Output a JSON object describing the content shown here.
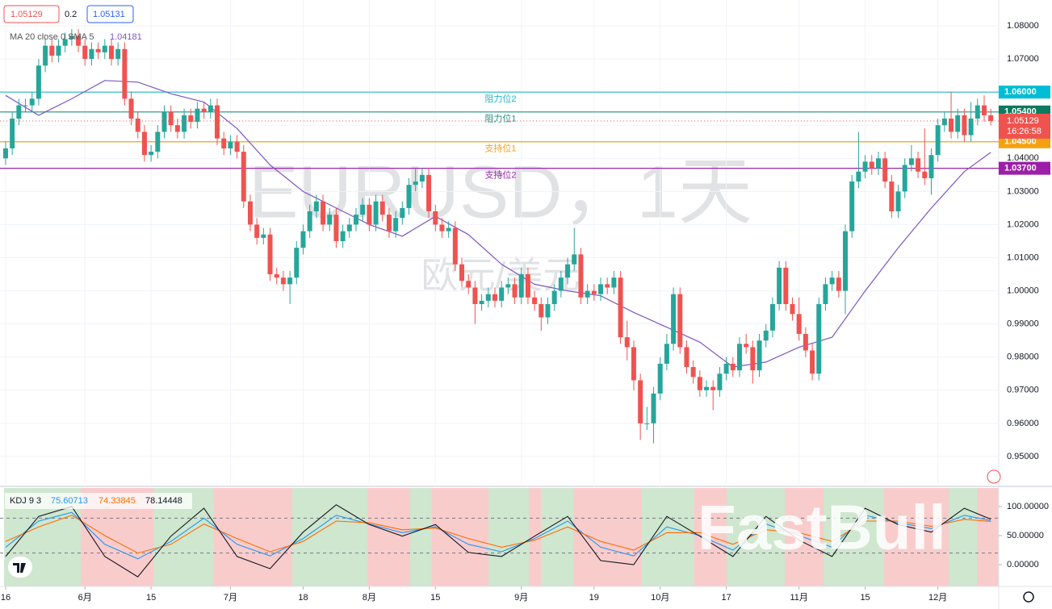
{
  "chart_data": [
    {
      "type": "candlestick",
      "title": "EURUSD，1天",
      "subtitle": "欧元/美元",
      "bid": 1.05129,
      "spread": 0.2,
      "ask": 1.05131,
      "countdown": "16:26:58",
      "up_color": "#26a69a",
      "down_color": "#ef5350",
      "xlim": [
        -0.85,
        150.2
      ],
      "ylim": [
        0.9417,
        1.0878
      ],
      "grid": true,
      "xticks": [
        {
          "value": 0,
          "label": "16"
        },
        {
          "value": 12,
          "label": "6月"
        },
        {
          "value": 22,
          "label": "15"
        },
        {
          "value": 34,
          "label": "7月"
        },
        {
          "value": 45,
          "label": "18"
        },
        {
          "value": 55,
          "label": "8月"
        },
        {
          "value": 65,
          "label": "15"
        },
        {
          "value": 78,
          "label": "9月"
        },
        {
          "value": 89,
          "label": "19"
        },
        {
          "value": 99,
          "label": "10月"
        },
        {
          "value": 109,
          "label": "17"
        },
        {
          "value": 120,
          "label": "11月"
        },
        {
          "value": 130,
          "label": "15"
        },
        {
          "value": 141,
          "label": "12月"
        }
      ],
      "yticks": [
        {
          "value": 0.95,
          "label": "0.95000"
        },
        {
          "value": 0.96,
          "label": "0.96000"
        },
        {
          "value": 0.97,
          "label": "0.97000"
        },
        {
          "value": 0.98,
          "label": "0.98000"
        },
        {
          "value": 0.99,
          "label": "0.99000"
        },
        {
          "value": 1.0,
          "label": "1.00000"
        },
        {
          "value": 1.01,
          "label": "1.01000"
        },
        {
          "value": 1.02,
          "label": "1.02000"
        },
        {
          "value": 1.03,
          "label": "1.03000"
        },
        {
          "value": 1.04,
          "label": "1.04000"
        },
        {
          "value": 1.05,
          "label": "1.05000"
        },
        {
          "value": 1.06,
          "label": "1.06000"
        },
        {
          "value": 1.07,
          "label": "1.07000"
        },
        {
          "value": 1.08,
          "label": "1.08000"
        }
      ],
      "levels": [
        {
          "name": "阻力位2",
          "price": {
            "value": 1.06,
            "label": "1.06000"
          },
          "color": "#22b5c8",
          "tag_color": "#00bcd4"
        },
        {
          "name": "阻力位1",
          "price": {
            "value": 1.054,
            "label": "1.05400"
          },
          "color": "#1f8f80",
          "tag_color": "#0c7a5e"
        },
        {
          "name": "支持位1",
          "price": {
            "value": 1.045,
            "label": "1.04500"
          },
          "color": "#f0a020",
          "tag_color": "#f5a10f"
        },
        {
          "name": "支持位2",
          "price": {
            "value": 1.037,
            "label": "1.03700"
          },
          "color": "#9c27b0",
          "tag_color": "#9c1fa8"
        }
      ],
      "open": [
        1.04,
        1.043,
        1.052,
        1.056,
        1.056,
        1.058,
        1.068,
        1.074,
        1.071,
        1.074,
        1.076,
        1.077,
        1.074,
        1.07,
        1.073,
        1.072,
        1.074,
        1.07,
        1.073,
        1.058,
        1.052,
        1.048,
        1.041,
        1.042,
        1.048,
        1.054,
        1.05,
        1.048,
        1.053,
        1.051,
        1.055,
        1.054,
        1.056,
        1.046,
        1.043,
        1.045,
        1.042,
        1.027,
        1.02,
        1.016,
        1.017,
        1.005,
        1.004,
        1.002,
        1.004,
        1.013,
        1.018,
        1.024,
        1.027,
        1.02,
        1.023,
        1.015,
        1.018,
        1.02,
        1.023,
        1.026,
        1.02,
        1.027,
        1.023,
        1.018,
        1.022,
        1.025,
        1.032,
        1.033,
        1.035,
        1.024,
        1.02,
        1.018,
        1.019,
        1.008,
        1.003,
        1.001,
        0.996,
        0.997,
        0.999,
        0.997,
        1.001,
        1.002,
        0.998,
        1.005,
        0.998,
        0.996,
        0.992,
        0.996,
        1.0,
        1.004,
        1.008,
        1.011,
        0.998,
        1.0,
        0.999,
        1.002,
        1.001,
        1.004,
        0.986,
        0.983,
        0.973,
        0.96,
        0.96,
        0.969,
        0.978,
        0.984,
        0.999,
        0.983,
        0.977,
        0.974,
        0.97,
        0.971,
        0.97,
        0.975,
        0.978,
        0.976,
        0.984,
        0.983,
        0.976,
        0.985,
        0.988,
        0.996,
        1.007,
        0.996,
        0.993,
        0.987,
        0.982,
        0.975,
        0.996,
        1.002,
        1.004,
        1.0,
        1.018,
        1.033,
        1.036,
        1.039,
        1.037,
        1.04,
        1.033,
        1.024,
        1.03,
        1.038,
        1.04,
        1.036,
        1.034,
        1.041,
        1.05,
        1.052,
        1.048,
        1.053,
        1.047,
        1.052,
        1.056,
        1.053
      ],
      "high": [
        1.045,
        1.054,
        1.058,
        1.058,
        1.06,
        1.07,
        1.076,
        1.076,
        1.076,
        1.078,
        1.079,
        1.079,
        1.076,
        1.075,
        1.075,
        1.076,
        1.076,
        1.075,
        1.075,
        1.06,
        1.054,
        1.05,
        1.044,
        1.05,
        1.056,
        1.056,
        1.052,
        1.055,
        1.055,
        1.057,
        1.057,
        1.058,
        1.058,
        1.048,
        1.047,
        1.047,
        1.044,
        1.029,
        1.022,
        1.019,
        1.019,
        1.007,
        1.006,
        1.006,
        1.015,
        1.02,
        1.026,
        1.029,
        1.029,
        1.025,
        1.025,
        1.02,
        1.022,
        1.025,
        1.028,
        1.028,
        1.029,
        1.029,
        1.025,
        1.024,
        1.027,
        1.034,
        1.037,
        1.037,
        1.037,
        1.026,
        1.022,
        1.021,
        1.021,
        1.01,
        1.005,
        1.003,
        0.999,
        1.001,
        1.001,
        1.003,
        1.004,
        1.004,
        1.007,
        1.007,
        1.0,
        0.998,
        0.998,
        1.002,
        1.006,
        1.01,
        1.019,
        1.013,
        1.002,
        1.002,
        1.004,
        1.004,
        1.006,
        1.006,
        0.991,
        0.985,
        0.975,
        0.965,
        0.971,
        0.98,
        0.987,
        1.001,
        1.001,
        0.985,
        0.979,
        0.976,
        0.973,
        0.973,
        0.977,
        0.98,
        0.98,
        0.986,
        0.987,
        0.985,
        0.987,
        0.99,
        0.998,
        1.009,
        1.009,
        0.998,
        0.998,
        0.989,
        0.984,
        0.998,
        1.004,
        1.006,
        1.006,
        1.02,
        1.035,
        1.048,
        1.041,
        1.041,
        1.042,
        1.042,
        1.035,
        1.032,
        1.04,
        1.044,
        1.042,
        1.049,
        1.043,
        1.052,
        1.054,
        1.06,
        1.055,
        1.055,
        1.057,
        1.058,
        1.059,
        1.055
      ],
      "low": [
        1.038,
        1.041,
        1.05,
        1.054,
        1.054,
        1.056,
        1.066,
        1.069,
        1.069,
        1.072,
        1.074,
        1.072,
        1.068,
        1.068,
        1.07,
        1.07,
        1.068,
        1.068,
        1.056,
        1.05,
        1.046,
        1.039,
        1.039,
        1.04,
        1.046,
        1.048,
        1.046,
        1.046,
        1.049,
        1.049,
        1.052,
        1.052,
        1.044,
        1.041,
        1.041,
        1.04,
        1.025,
        1.018,
        1.014,
        1.014,
        1.003,
        1.002,
        1.0,
        0.996,
        1.002,
        1.011,
        1.016,
        1.022,
        1.018,
        1.018,
        1.013,
        1.013,
        1.016,
        1.018,
        1.021,
        1.018,
        1.018,
        1.021,
        1.016,
        1.016,
        1.02,
        1.023,
        1.03,
        1.031,
        1.022,
        1.018,
        1.016,
        1.016,
        1.006,
        1.001,
        0.999,
        0.99,
        0.994,
        0.995,
        0.995,
        0.995,
        0.999,
        0.996,
        0.996,
        0.996,
        0.994,
        0.988,
        0.99,
        0.994,
        0.998,
        1.002,
        1.006,
        0.996,
        0.996,
        0.997,
        0.997,
        0.999,
        0.999,
        0.984,
        0.979,
        0.97,
        0.955,
        0.958,
        0.954,
        0.967,
        0.976,
        0.982,
        0.981,
        0.975,
        0.972,
        0.968,
        0.968,
        0.964,
        0.968,
        0.973,
        0.974,
        0.974,
        0.981,
        0.972,
        0.974,
        0.983,
        0.986,
        0.994,
        0.994,
        0.991,
        0.985,
        0.98,
        0.973,
        0.973,
        0.994,
        1.0,
        0.998,
        0.993,
        1.016,
        1.031,
        1.034,
        1.035,
        1.035,
        1.031,
        1.022,
        1.022,
        1.028,
        1.036,
        1.034,
        1.032,
        1.029,
        1.039,
        1.048,
        1.046,
        1.046,
        1.045,
        1.045,
        1.05,
        1.051,
        1.05
      ],
      "close": [
        1.043,
        1.052,
        1.056,
        1.056,
        1.058,
        1.068,
        1.074,
        1.071,
        1.074,
        1.076,
        1.077,
        1.074,
        1.07,
        1.073,
        1.072,
        1.074,
        1.07,
        1.073,
        1.058,
        1.052,
        1.048,
        1.041,
        1.042,
        1.048,
        1.054,
        1.05,
        1.048,
        1.053,
        1.051,
        1.055,
        1.054,
        1.056,
        1.046,
        1.043,
        1.045,
        1.042,
        1.027,
        1.02,
        1.016,
        1.017,
        1.005,
        1.004,
        1.002,
        1.004,
        1.013,
        1.018,
        1.024,
        1.027,
        1.02,
        1.023,
        1.015,
        1.018,
        1.02,
        1.023,
        1.026,
        1.02,
        1.027,
        1.023,
        1.018,
        1.022,
        1.025,
        1.032,
        1.033,
        1.035,
        1.024,
        1.02,
        1.018,
        1.019,
        1.008,
        1.003,
        1.001,
        0.996,
        0.997,
        0.999,
        0.997,
        1.001,
        1.002,
        0.998,
        1.005,
        0.998,
        0.996,
        0.992,
        0.996,
        1.0,
        1.004,
        1.008,
        1.011,
        0.998,
        1.0,
        0.999,
        1.002,
        1.001,
        1.004,
        0.986,
        0.983,
        0.973,
        0.96,
        0.96,
        0.969,
        0.978,
        0.984,
        0.999,
        0.983,
        0.977,
        0.974,
        0.97,
        0.971,
        0.97,
        0.975,
        0.978,
        0.976,
        0.984,
        0.983,
        0.976,
        0.985,
        0.988,
        0.996,
        1.007,
        0.996,
        0.993,
        0.987,
        0.982,
        0.975,
        0.996,
        1.002,
        1.004,
        1.0,
        1.018,
        1.033,
        1.036,
        1.039,
        1.037,
        1.04,
        1.033,
        1.024,
        1.03,
        1.038,
        1.04,
        1.036,
        1.034,
        1.041,
        1.05,
        1.052,
        1.048,
        1.053,
        1.047,
        1.052,
        1.056,
        1.053,
        1.05129
      ],
      "ma": {
        "name": "MA 20 close 0 SMA 5",
        "color": "#7e57c2",
        "x": [
          0,
          5,
          10,
          15,
          20,
          25,
          30,
          35,
          40,
          45,
          50,
          55,
          60,
          65,
          70,
          75,
          80,
          85,
          90,
          95,
          100,
          105,
          110,
          115,
          120,
          125,
          130,
          135,
          140,
          145,
          149
        ],
        "values": [
          1.059,
          1.053,
          1.058,
          1.0635,
          1.063,
          1.0595,
          1.057,
          1.049,
          1.038,
          1.03,
          1.025,
          1.02,
          1.0165,
          1.0225,
          1.017,
          1.008,
          1.002,
          1.0,
          0.9985,
          0.9935,
          0.989,
          0.9845,
          0.977,
          0.9785,
          0.983,
          0.986,
          1.0,
          1.013,
          1.025,
          1.036,
          1.04181
        ]
      }
    },
    {
      "type": "line",
      "title": "KDJ 9 3",
      "ylim": [
        -37.5,
        131.9
      ],
      "hlines": [
        80,
        20
      ],
      "yticks": [
        {
          "value": 0,
          "label": "0.00000"
        },
        {
          "value": 50,
          "label": "50.00000"
        },
        {
          "value": 100,
          "label": "100.00000"
        }
      ],
      "x": [
        0,
        5,
        10,
        15,
        20,
        25,
        30,
        35,
        40,
        45,
        50,
        55,
        60,
        65,
        70,
        75,
        80,
        85,
        90,
        95,
        100,
        105,
        110,
        115,
        120,
        125,
        130,
        135,
        140,
        145,
        149
      ],
      "series": [
        {
          "color": "#2196f3",
          "values": [
            30,
            75,
            90,
            35,
            10,
            40,
            80,
            35,
            15,
            45,
            85,
            70,
            55,
            65,
            35,
            22,
            45,
            75,
            30,
            15,
            65,
            50,
            25,
            70,
            50,
            30,
            85,
            72,
            62,
            85,
            75.60713
          ]
        },
        {
          "color": "#ff6d00",
          "values": [
            40,
            65,
            85,
            50,
            20,
            35,
            70,
            45,
            22,
            40,
            75,
            72,
            60,
            63,
            45,
            30,
            42,
            65,
            40,
            25,
            55,
            55,
            35,
            60,
            55,
            40,
            75,
            75,
            66,
            78,
            74.33845
          ]
        },
        {
          "color": "#131722",
          "values": [
            14,
            83,
            100,
            14,
            -21,
            49,
            97,
            14,
            -7,
            56,
            103,
            69,
            49,
            69,
            21,
            14,
            49,
            83,
            7,
            0,
            83,
            49,
            14,
            83,
            42,
            14,
            97,
            69,
            56,
            97,
            78.14448
          ]
        }
      ]
    }
  ],
  "watermark": "FastBull"
}
